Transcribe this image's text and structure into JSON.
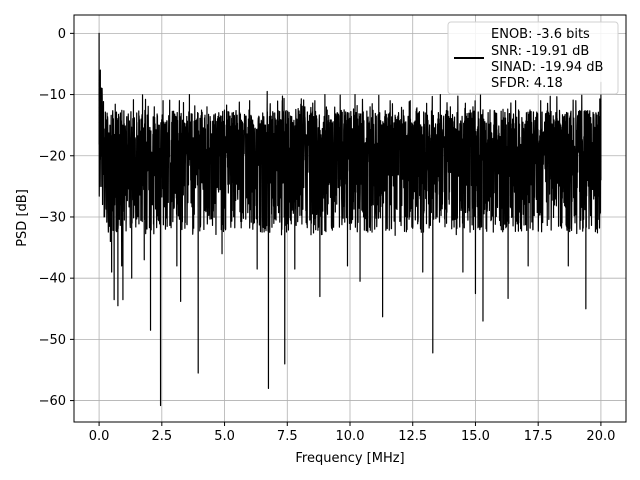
{
  "chart_data": {
    "type": "line",
    "title": "",
    "xlabel": "Frequency [MHz]",
    "ylabel": "PSD [dB]",
    "xlim": [
      -1.0,
      21.0
    ],
    "ylim": [
      -63.5,
      3.0
    ],
    "x_ticks": [
      0.0,
      2.5,
      5.0,
      7.5,
      10.0,
      12.5,
      15.0,
      17.5,
      20.0
    ],
    "x_tick_labels": [
      "0.0",
      "2.5",
      "5.0",
      "7.5",
      "10.0",
      "12.5",
      "15.0",
      "17.5",
      "20.0"
    ],
    "y_ticks": [
      0,
      -10,
      -20,
      -30,
      -40,
      -50,
      -60
    ],
    "y_tick_labels": [
      "0",
      "−10",
      "−20",
      "−30",
      "−40",
      "−50",
      "−60"
    ],
    "grid": true,
    "legend_position": "top-right",
    "legend": [
      "ENOB: -3.6 bits",
      "SNR: -19.91 dB",
      "SINAD: -19.94 dB",
      "SFDR: 4.18"
    ],
    "line_color": "#000000",
    "series": [
      {
        "x_range": [
          0.0,
          20.0
        ],
        "baseline_db": -20.5,
        "typical_max_db": -10,
        "typical_min_db": -33,
        "points_approx": [
          [
            0.0,
            0.0
          ],
          [
            0.03,
            -18
          ],
          [
            0.05,
            -6
          ],
          [
            0.08,
            -25
          ],
          [
            0.1,
            -14
          ],
          [
            0.12,
            -9
          ],
          [
            0.2,
            -30
          ],
          [
            0.3,
            -16
          ],
          [
            0.45,
            -34
          ],
          [
            0.5,
            -39
          ],
          [
            0.55,
            -15
          ],
          [
            0.6,
            -43.5
          ],
          [
            0.7,
            -24
          ],
          [
            0.75,
            -44.5
          ],
          [
            0.85,
            -13
          ],
          [
            0.9,
            -38
          ],
          [
            0.95,
            -43.5
          ],
          [
            1.05,
            -16
          ],
          [
            1.3,
            -40
          ],
          [
            1.5,
            -13
          ],
          [
            1.8,
            -37
          ],
          [
            2.0,
            -19
          ],
          [
            2.05,
            -48.5
          ],
          [
            2.2,
            -12
          ],
          [
            2.4,
            -15
          ],
          [
            2.45,
            -60.8
          ],
          [
            2.55,
            -11
          ],
          [
            3.1,
            -38
          ],
          [
            3.2,
            -11
          ],
          [
            3.25,
            -43.8
          ],
          [
            3.6,
            -10
          ],
          [
            3.9,
            -14
          ],
          [
            3.95,
            -55.5
          ],
          [
            4.3,
            -12
          ],
          [
            4.9,
            -36
          ],
          [
            5.3,
            -13
          ],
          [
            6.0,
            -11
          ],
          [
            6.3,
            -38.5
          ],
          [
            6.7,
            -9.5
          ],
          [
            6.75,
            -58
          ],
          [
            7.0,
            -13
          ],
          [
            7.3,
            -11
          ],
          [
            7.4,
            -54
          ],
          [
            7.8,
            -38.5
          ],
          [
            8.2,
            -12
          ],
          [
            8.6,
            -11
          ],
          [
            8.8,
            -43
          ],
          [
            9.0,
            -10
          ],
          [
            9.5,
            -13
          ],
          [
            9.9,
            -38
          ],
          [
            10.2,
            -10
          ],
          [
            10.4,
            -40.5
          ],
          [
            10.8,
            -12
          ],
          [
            11.3,
            -46.3
          ],
          [
            11.6,
            -11
          ],
          [
            11.8,
            -33
          ],
          [
            12.4,
            -11
          ],
          [
            12.9,
            -39
          ],
          [
            13.0,
            -13
          ],
          [
            13.3,
            -52.2
          ],
          [
            13.6,
            -10
          ],
          [
            14.0,
            -12
          ],
          [
            14.5,
            -39
          ],
          [
            14.9,
            -12
          ],
          [
            15.0,
            -42.5
          ],
          [
            15.2,
            -10
          ],
          [
            15.3,
            -47
          ],
          [
            15.8,
            -13
          ],
          [
            16.3,
            -43.3
          ],
          [
            16.6,
            -11
          ],
          [
            17.1,
            -38
          ],
          [
            17.6,
            -11
          ],
          [
            18.0,
            -13
          ],
          [
            18.7,
            -38
          ],
          [
            19.0,
            -11
          ],
          [
            19.4,
            -45
          ],
          [
            20.0,
            -8
          ],
          [
            20.0,
            -24
          ]
        ]
      }
    ]
  }
}
